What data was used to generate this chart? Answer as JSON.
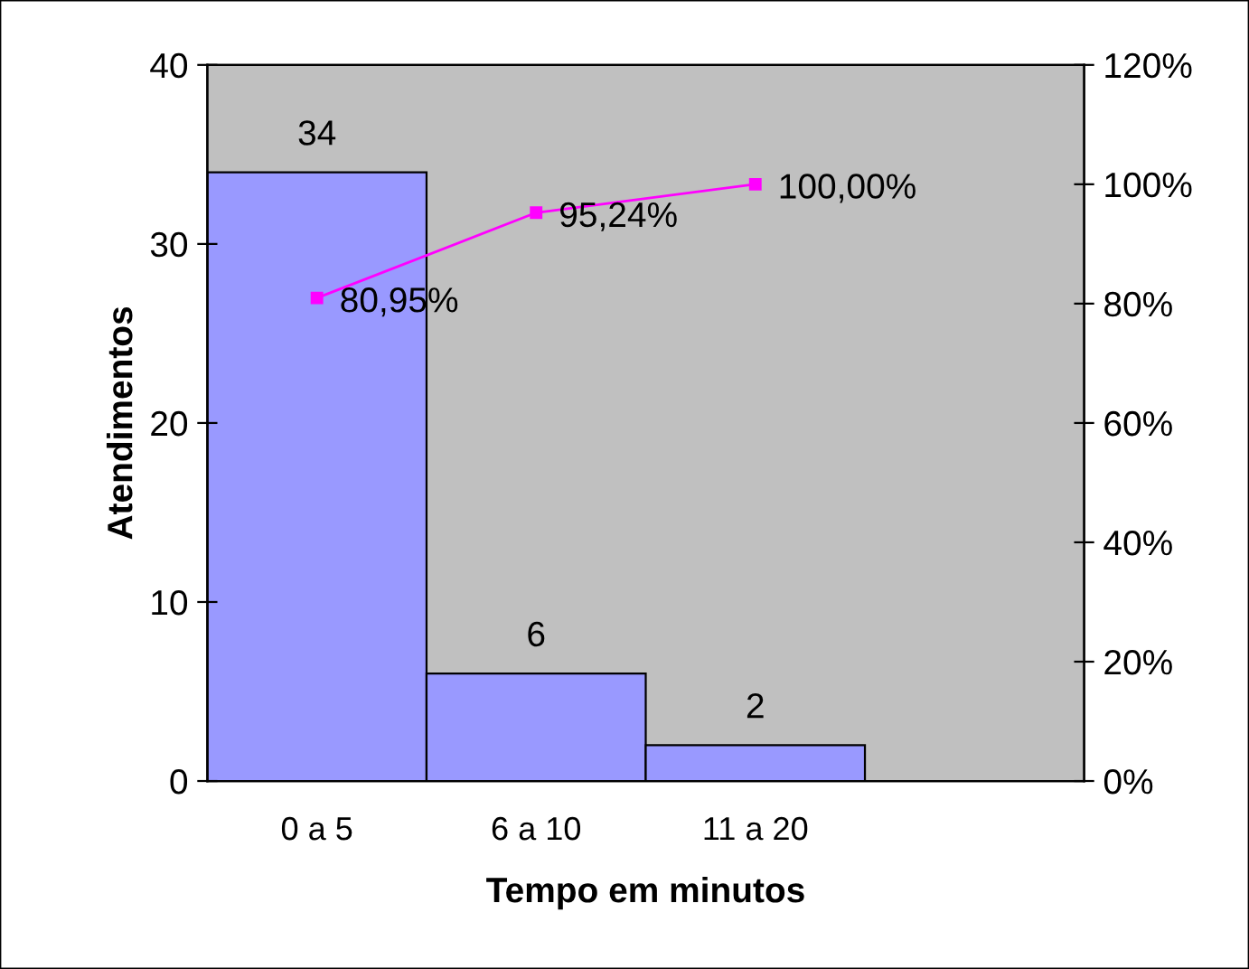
{
  "chart_data": {
    "type": "bar",
    "xlabel": "Tempo em minutos",
    "ylabel": "Atendimentos",
    "categories": [
      "0 a 5",
      "6 a 10",
      "11 a 20",
      null
    ],
    "series": [
      {
        "color": "#9999ff",
        "values": [
          34,
          6,
          2,
          null
        ],
        "value_labels": [
          "34",
          "6",
          "2",
          null
        ]
      },
      {
        "type": "line",
        "axis": "y2",
        "color": "#ff00ff",
        "values": [
          80.95,
          95.24,
          100,
          null
        ],
        "value_labels": [
          "80,95%",
          "95,24%",
          "100,00%",
          null
        ]
      }
    ],
    "ylim": [
      0,
      40
    ],
    "yticks": [
      0,
      10,
      20,
      30,
      40
    ],
    "y2lim": [
      0,
      120
    ],
    "y2ticks": [
      {
        "value": 0,
        "label": "0%"
      },
      {
        "value": 20,
        "label": "20%"
      },
      {
        "value": 40,
        "label": "40%"
      },
      {
        "value": 60,
        "label": "60%"
      },
      {
        "value": 80,
        "label": "80%"
      },
      {
        "value": 100,
        "label": "100%"
      },
      {
        "value": 120,
        "label": "120%"
      }
    ],
    "marker": "square",
    "grid": false,
    "legend": false
  }
}
